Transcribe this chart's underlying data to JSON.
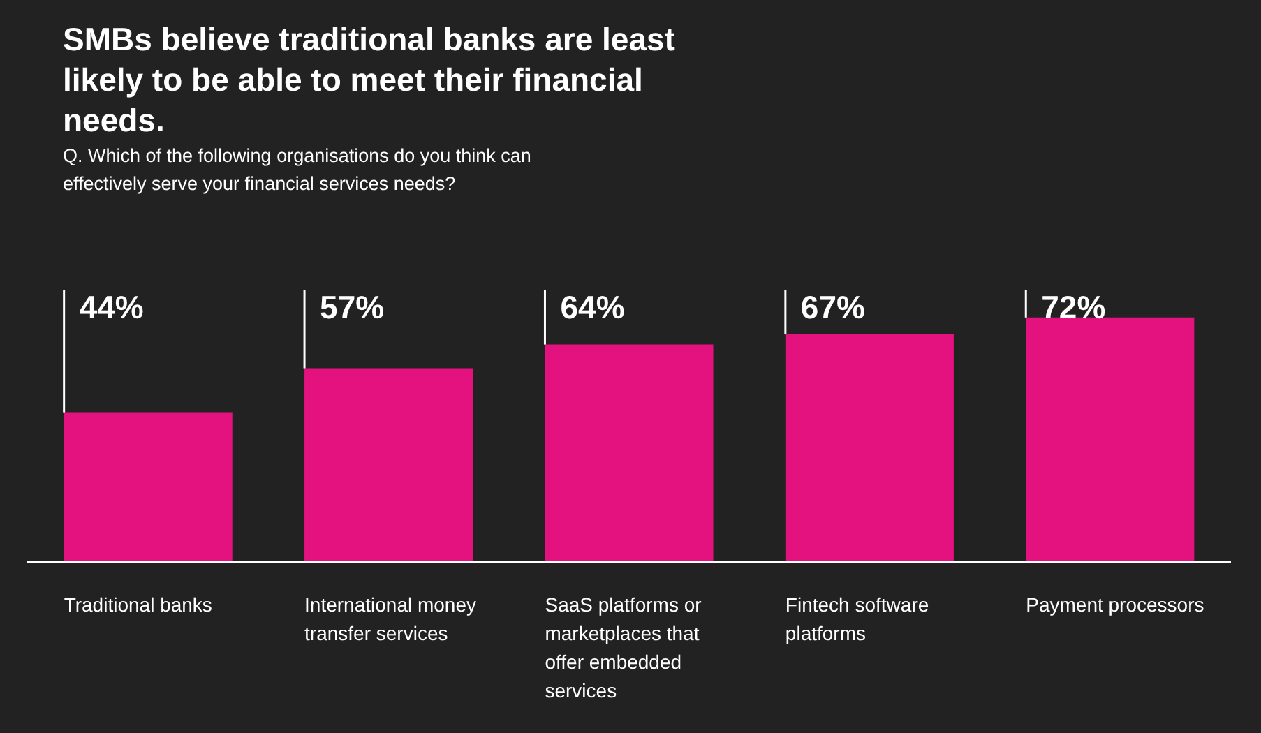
{
  "chart_data": {
    "type": "bar",
    "title": "SMBs believe traditional banks are least likely to be able to meet their financial needs.",
    "subtitle": "Q. Which of the following organisations do you think can effectively serve your financial services needs?",
    "categories": [
      "Traditional banks",
      "International money transfer services",
      "SaaS platforms or marketplaces that offer embedded services",
      "Fintech software platforms",
      "Payment processors"
    ],
    "values": [
      44,
      57,
      64,
      67,
      72
    ],
    "value_labels": [
      "44%",
      "57%",
      "64%",
      "67%",
      "72%"
    ],
    "color": "#e3127f",
    "legend": false
  }
}
